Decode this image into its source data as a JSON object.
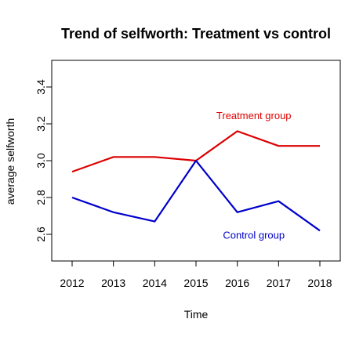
{
  "chart_data": {
    "type": "line",
    "title": "Trend of selfworth: Treatment vs control",
    "xlabel": "Time",
    "ylabel": "average selfworth",
    "x": [
      2012,
      2013,
      2014,
      2015,
      2016,
      2017,
      2018
    ],
    "xlim": [
      2012,
      2018
    ],
    "ylim": [
      2.6,
      3.4
    ],
    "yticks": [
      2.6,
      2.8,
      3.0,
      3.2,
      3.4
    ],
    "ytick_labels": [
      "2.6",
      "2.8",
      "3.0",
      "3.2",
      "3.4"
    ],
    "grid": false,
    "legend": "none",
    "series": [
      {
        "name": "Treatment group",
        "color": "#dd0000",
        "values": [
          2.94,
          3.02,
          3.02,
          3.0,
          3.16,
          3.08,
          3.08
        ]
      },
      {
        "name": "Control group",
        "color": "#0000cc",
        "values": [
          2.8,
          2.72,
          2.67,
          3.0,
          2.72,
          2.78,
          2.62
        ]
      }
    ],
    "annotations": [
      {
        "text": "Treatment group",
        "x": 2016.4,
        "y": 3.245,
        "color": "#dd0000"
      },
      {
        "text": "Control group",
        "x": 2016.4,
        "y": 2.595,
        "color": "#0000cc"
      }
    ]
  }
}
